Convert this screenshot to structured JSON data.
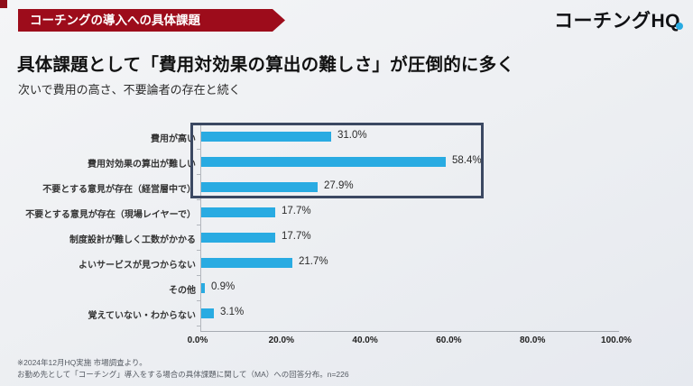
{
  "header": {
    "badge": "コーチングの導入への具体課題",
    "logo_text": "コーチングH",
    "logo_q": "Q"
  },
  "title": "具体課題として「費用対効果の算出の難しさ」が圧倒的に多く",
  "subtitle": "次いで費用の高さ、不要論者の存在と続く",
  "chart_data": {
    "type": "bar",
    "orientation": "horizontal",
    "title": "",
    "xlabel": "",
    "ylabel": "",
    "xlim": [
      0,
      100
    ],
    "grid": false,
    "legend": false,
    "categories": [
      "費用が高い",
      "費用対効果の算出が難しい",
      "不要とする意見が存在（経営層中で）",
      "不要とする意見が存在（現場レイヤーで）",
      "制度設計が難しく工数がかかる",
      "よいサービスが見つからない",
      "その他",
      "覚えていない・わからない"
    ],
    "values": [
      31.0,
      58.4,
      27.9,
      17.7,
      17.7,
      21.7,
      0.9,
      3.1
    ],
    "value_labels": [
      "31.0%",
      "58.4%",
      "27.9%",
      "17.7%",
      "17.7%",
      "21.7%",
      "0.9%",
      "3.1%"
    ],
    "x_ticks": [
      "0.0%",
      "20.0%",
      "40.0%",
      "60.0%",
      "80.0%",
      "100.0%"
    ],
    "bar_color": "#29abe2",
    "highlighted_rows": [
      0,
      1,
      2
    ],
    "highlight_border_color": "#3b4862"
  },
  "footnote": {
    "line1": "※2024年12月HQ実施 市場調査より。",
    "line2": "お勤め先として「コーチング」導入をする場合の具体課題に関して（MA）への回答分布。n=226"
  }
}
